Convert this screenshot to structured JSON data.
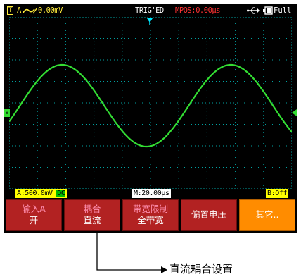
{
  "topbar": {
    "channel_mark": "T",
    "channel_label": "A",
    "trigger_value": "0.00mV",
    "trig_status": "TRIG'ED",
    "mpos": "MPOS:0.00µs",
    "usb_icon": "usb-icon",
    "battery_icon": "battery-icon",
    "battery_label": "Full"
  },
  "status": {
    "channel_a": "A:500.0mV",
    "coupling": "DC",
    "timebase": "M:20.00µs",
    "channel_b": "B:Off"
  },
  "menu": [
    {
      "line1": "输入A",
      "line2": "开"
    },
    {
      "line1": "耦合",
      "line2": "直流"
    },
    {
      "line1": "带宽限制",
      "line2": "全带宽"
    },
    {
      "single": "偏置电压"
    },
    {
      "single": "其它.."
    }
  ],
  "annotation": {
    "label": "直流耦合设置"
  },
  "colors": {
    "screen_bg": "#000000",
    "waveform": "#33dd33",
    "grid_dots": "#00a0a0",
    "menu_bg": "#b22222",
    "menu_active": "#ff8c00",
    "channel_yellow": "#ffff00",
    "trigger_marker": "#00e5ff"
  }
}
